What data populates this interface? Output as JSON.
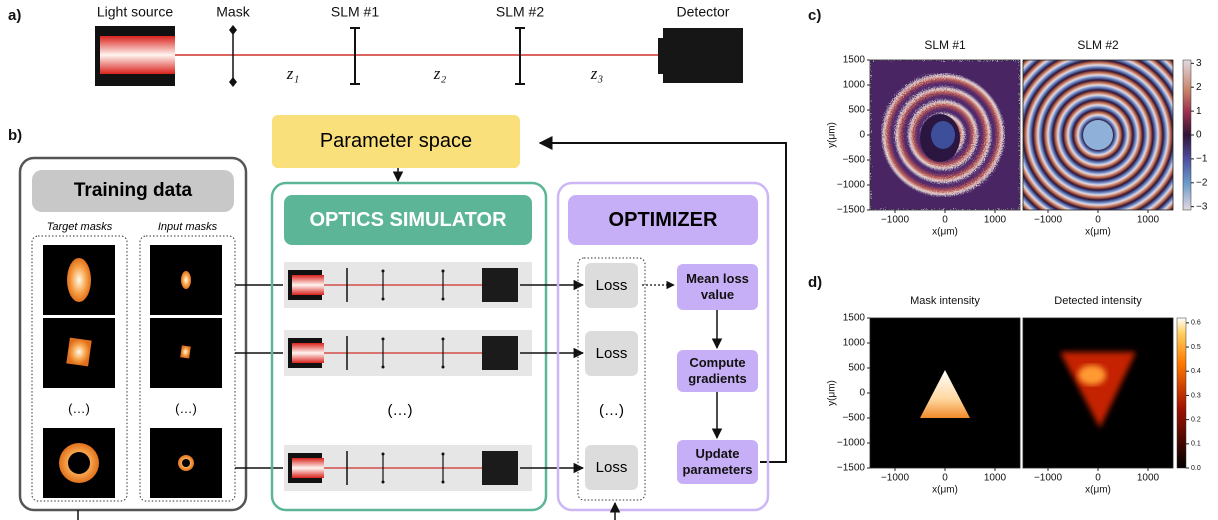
{
  "panel_a": {
    "label": "a)",
    "components": [
      "Light source",
      "Mask",
      "SLM #1",
      "SLM #2",
      "Detector"
    ],
    "distances": [
      "z₁",
      "z₂",
      "z₃"
    ]
  },
  "panel_b": {
    "label": "b)",
    "parameter_space": "Parameter space",
    "training_data": {
      "title": "Training data",
      "target_masks": "Target masks",
      "input_masks": "Input masks",
      "ellipsis": "(…)"
    },
    "simulator": {
      "title": "OPTICS SIMULATOR",
      "ellipsis": "(…)"
    },
    "optimizer": {
      "title": "OPTIMIZER",
      "loss": "Loss",
      "ellipsis": "(…)",
      "mean": "Mean loss value",
      "gradients": "Compute gradients",
      "update": "Update parameters"
    }
  },
  "panel_c": {
    "label": "c)",
    "titles": [
      "SLM #1",
      "SLM #2"
    ],
    "xlabel": "x(μm)",
    "ylabel": "y(μm)",
    "xlim": [
      -1500,
      1500
    ],
    "ylim": [
      -1500,
      1500
    ],
    "xticks": [
      {
        "value": -1000,
        "label": "−1000"
      },
      0,
      1000
    ],
    "yticks": [
      1500,
      1000,
      500,
      0,
      {
        "value": -500,
        "label": "−500"
      },
      {
        "value": -1000,
        "label": "−1000"
      },
      {
        "value": -1500,
        "label": "−1500"
      }
    ],
    "colorbar": {
      "lim": [
        -3.14,
        3.14
      ],
      "ticks": [
        3,
        2,
        1,
        0,
        {
          "value": -1,
          "label": "−1"
        },
        {
          "value": -2,
          "label": "−2"
        },
        {
          "value": -3,
          "label": "−3"
        }
      ]
    }
  },
  "panel_d": {
    "label": "d)",
    "titles": [
      "Mask intensity",
      "Detected intensity"
    ],
    "xlabel": "x(μm)",
    "ylabel": "y(μm)",
    "xlim": [
      -1500,
      1500
    ],
    "ylim": [
      -1500,
      1500
    ],
    "xticks": [
      {
        "value": -1000,
        "label": "−1000"
      },
      0,
      1000
    ],
    "yticks": [
      1500,
      1000,
      500,
      0,
      {
        "value": -500,
        "label": "−500"
      },
      {
        "value": -1000,
        "label": "−1000"
      },
      {
        "value": -1500,
        "label": "−1500"
      }
    ],
    "colorbar": {
      "lim": [
        0,
        0.62
      ],
      "ticks": [
        {
          "value": 0,
          "label": "0.0"
        },
        0.1,
        0.2,
        0.3,
        0.4,
        0.5,
        0.6
      ]
    }
  }
}
